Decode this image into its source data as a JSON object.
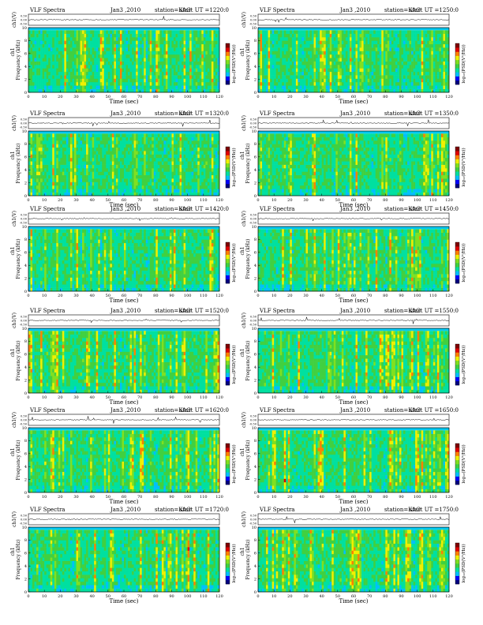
{
  "figure": {
    "panel_title": "VLF Spectra",
    "date_label": "Jan3 ,2010",
    "station_label": "station=KAG",
    "start_prefix": "start  UT  =",
    "top_ylabel": "ch1(V)",
    "spec_ylabel": "Frequency  (kHz)",
    "spec_ylabel_ch": "ch1",
    "colorbar_label": "log₁₀(PSD(V²/Hz))",
    "xlabel": "Time  (sec)"
  },
  "chart_data": [
    {
      "type": "heatmap",
      "start_ut": "1220:0",
      "title": "VLF Spectra",
      "x_ticks": [
        0,
        10,
        20,
        30,
        40,
        50,
        60,
        70,
        80,
        90,
        100,
        110,
        120
      ],
      "y_ticks": [
        0,
        2,
        4,
        6,
        8,
        10
      ],
      "top_ticks": [
        "0.50",
        "0.00",
        "-0.50"
      ],
      "xlim": [
        0,
        120
      ],
      "ylim": [
        0,
        10
      ],
      "xlabel": "Time  (sec)",
      "ylabel": "Frequency  (kHz)"
    },
    {
      "type": "heatmap",
      "start_ut": "1250:0",
      "title": "VLF Spectra",
      "x_ticks": [
        0,
        10,
        20,
        30,
        40,
        50,
        60,
        70,
        80,
        90,
        100,
        110,
        120
      ],
      "y_ticks": [
        0,
        2,
        4,
        6,
        8,
        10
      ],
      "top_ticks": [
        "0.50",
        "0.00",
        "-0.50"
      ],
      "xlim": [
        0,
        120
      ],
      "ylim": [
        0,
        10
      ],
      "xlabel": "Time  (sec)",
      "ylabel": "Frequency  (kHz)"
    },
    {
      "type": "heatmap",
      "start_ut": "1320:0",
      "title": "VLF Spectra",
      "x_ticks": [
        0,
        10,
        20,
        30,
        40,
        50,
        60,
        70,
        80,
        90,
        100,
        110,
        120
      ],
      "y_ticks": [
        0,
        2,
        4,
        6,
        8,
        10
      ],
      "top_ticks": [
        "0.50",
        "0.00",
        "-0.50"
      ],
      "xlim": [
        0,
        120
      ],
      "ylim": [
        0,
        10
      ],
      "xlabel": "Time  (sec)",
      "ylabel": "Frequency  (kHz)"
    },
    {
      "type": "heatmap",
      "start_ut": "1350:0",
      "title": "VLF Spectra",
      "x_ticks": [
        0,
        10,
        20,
        30,
        40,
        50,
        60,
        70,
        80,
        90,
        100,
        110,
        120
      ],
      "y_ticks": [
        0,
        2,
        4,
        6,
        8,
        10
      ],
      "top_ticks": [
        "0.50",
        "0.00",
        "-0.50"
      ],
      "xlim": [
        0,
        120
      ],
      "ylim": [
        0,
        10
      ],
      "xlabel": "Time  (sec)",
      "ylabel": "Frequency  (kHz)"
    },
    {
      "type": "heatmap",
      "start_ut": "1420:0",
      "title": "VLF Spectra",
      "x_ticks": [
        0,
        10,
        20,
        30,
        40,
        50,
        60,
        70,
        80,
        90,
        100,
        110,
        120
      ],
      "y_ticks": [
        0,
        2,
        4,
        6,
        8,
        10
      ],
      "top_ticks": [
        "0.50",
        "0.00",
        "-0.50"
      ],
      "xlim": [
        0,
        120
      ],
      "ylim": [
        0,
        10
      ],
      "xlabel": "Time  (sec)",
      "ylabel": "Frequency  (kHz)"
    },
    {
      "type": "heatmap",
      "start_ut": "1450:0",
      "title": "VLF Spectra",
      "x_ticks": [
        0,
        10,
        20,
        30,
        40,
        50,
        60,
        70,
        80,
        90,
        100,
        110,
        120
      ],
      "y_ticks": [
        0,
        2,
        4,
        6,
        8,
        10
      ],
      "top_ticks": [
        "0.50",
        "0.00",
        "-0.50"
      ],
      "xlim": [
        0,
        120
      ],
      "ylim": [
        0,
        10
      ],
      "xlabel": "Time  (sec)",
      "ylabel": "Frequency  (kHz)"
    },
    {
      "type": "heatmap",
      "start_ut": "1520:0",
      "title": "VLF Spectra",
      "x_ticks": [
        0,
        10,
        20,
        30,
        40,
        50,
        60,
        70,
        80,
        90,
        100,
        110,
        120
      ],
      "y_ticks": [
        0,
        2,
        4,
        6,
        8,
        10
      ],
      "top_ticks": [
        "0.50",
        "0.00",
        "-0.50"
      ],
      "xlim": [
        0,
        120
      ],
      "ylim": [
        0,
        10
      ],
      "xlabel": "Time  (sec)",
      "ylabel": "Frequency  (kHz)"
    },
    {
      "type": "heatmap",
      "start_ut": "1550:0",
      "title": "VLF Spectra",
      "x_ticks": [
        0,
        10,
        20,
        30,
        40,
        50,
        60,
        70,
        80,
        90,
        100,
        110,
        120
      ],
      "y_ticks": [
        0,
        2,
        4,
        6,
        8,
        10
      ],
      "top_ticks": [
        "0.50",
        "0.00",
        "-0.50"
      ],
      "xlim": [
        0,
        120
      ],
      "ylim": [
        0,
        10
      ],
      "xlabel": "Time  (sec)",
      "ylabel": "Frequency  (kHz)"
    },
    {
      "type": "heatmap",
      "start_ut": "1620:0",
      "title": "VLF Spectra",
      "x_ticks": [
        0,
        10,
        20,
        30,
        40,
        50,
        60,
        70,
        80,
        90,
        100,
        110,
        120
      ],
      "y_ticks": [
        0,
        2,
        4,
        6,
        8,
        10
      ],
      "top_ticks": [
        "0.50",
        "0.00",
        "-0.50"
      ],
      "xlim": [
        0,
        120
      ],
      "ylim": [
        0,
        10
      ],
      "xlabel": "Time  (sec)",
      "ylabel": "Frequency  (kHz)"
    },
    {
      "type": "heatmap",
      "start_ut": "1650:0",
      "title": "VLF Spectra",
      "x_ticks": [
        0,
        10,
        20,
        30,
        40,
        50,
        60,
        70,
        80,
        90,
        100,
        110,
        120
      ],
      "y_ticks": [
        0,
        2,
        4,
        6,
        8,
        10
      ],
      "top_ticks": [
        "0.50",
        "0.00",
        "-0.50"
      ],
      "xlim": [
        0,
        120
      ],
      "ylim": [
        0,
        10
      ],
      "xlabel": "Time  (sec)",
      "ylabel": "Frequency  (kHz)"
    },
    {
      "type": "heatmap",
      "start_ut": "1720:0",
      "title": "VLF Spectra",
      "x_ticks": [
        0,
        10,
        20,
        30,
        40,
        50,
        60,
        70,
        80,
        90,
        100,
        110,
        120
      ],
      "y_ticks": [
        0,
        2,
        4,
        6,
        8,
        10
      ],
      "top_ticks": [
        "0.50",
        "0.00",
        "-0.50"
      ],
      "xlim": [
        0,
        120
      ],
      "ylim": [
        0,
        10
      ],
      "xlabel": "Time  (sec)",
      "ylabel": "Frequency  (kHz)"
    },
    {
      "type": "heatmap",
      "start_ut": "1750:0",
      "title": "VLF Spectra",
      "x_ticks": [
        0,
        10,
        20,
        30,
        40,
        50,
        60,
        70,
        80,
        90,
        100,
        110,
        120
      ],
      "y_ticks": [
        0,
        2,
        4,
        6,
        8,
        10
      ],
      "top_ticks": [
        "0.50",
        "0.00",
        "-0.50"
      ],
      "xlim": [
        0,
        120
      ],
      "ylim": [
        0,
        10
      ],
      "xlabel": "Time  (sec)",
      "ylabel": "Frequency  (kHz)"
    }
  ],
  "colors": {
    "colormap": [
      "#000080",
      "#0000ff",
      "#00c0ff",
      "#00e0a0",
      "#40d040",
      "#80e020",
      "#f0f000",
      "#ff8000",
      "#e00000",
      "#800000"
    ],
    "baseline_band": "#00c8f0",
    "axis": "#000000"
  }
}
